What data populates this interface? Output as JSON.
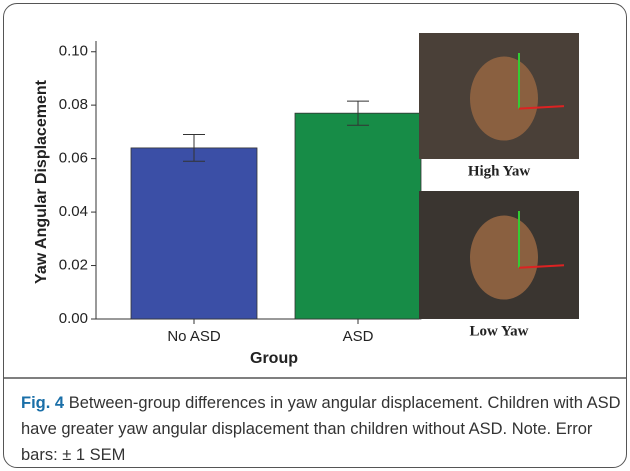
{
  "chart_data": {
    "type": "bar",
    "x_label": "Group",
    "y_label": "Yaw Angular Displacement",
    "categories": [
      "No ASD",
      "ASD"
    ],
    "values": [
      0.064,
      0.077
    ],
    "errors": [
      0.005,
      0.0045
    ],
    "colors": [
      "#3b4fa6",
      "#178c47"
    ],
    "ylim": [
      0,
      0.104
    ],
    "yticks": [
      {
        "value": 0,
        "label": "0.00"
      },
      0.02,
      0.04,
      0.06,
      0.08,
      {
        "value": 0.1,
        "label": "0.10"
      }
    ],
    "images": [
      {
        "label": "High Yaw"
      },
      {
        "label": "Low Yaw"
      }
    ]
  },
  "caption": {
    "label": "Fig. 4",
    "text": "Between-group differences in yaw angular displacement. Children with ASD have greater yaw angular displacement than children without ASD. Note. Error bars: ± 1 SEM"
  }
}
